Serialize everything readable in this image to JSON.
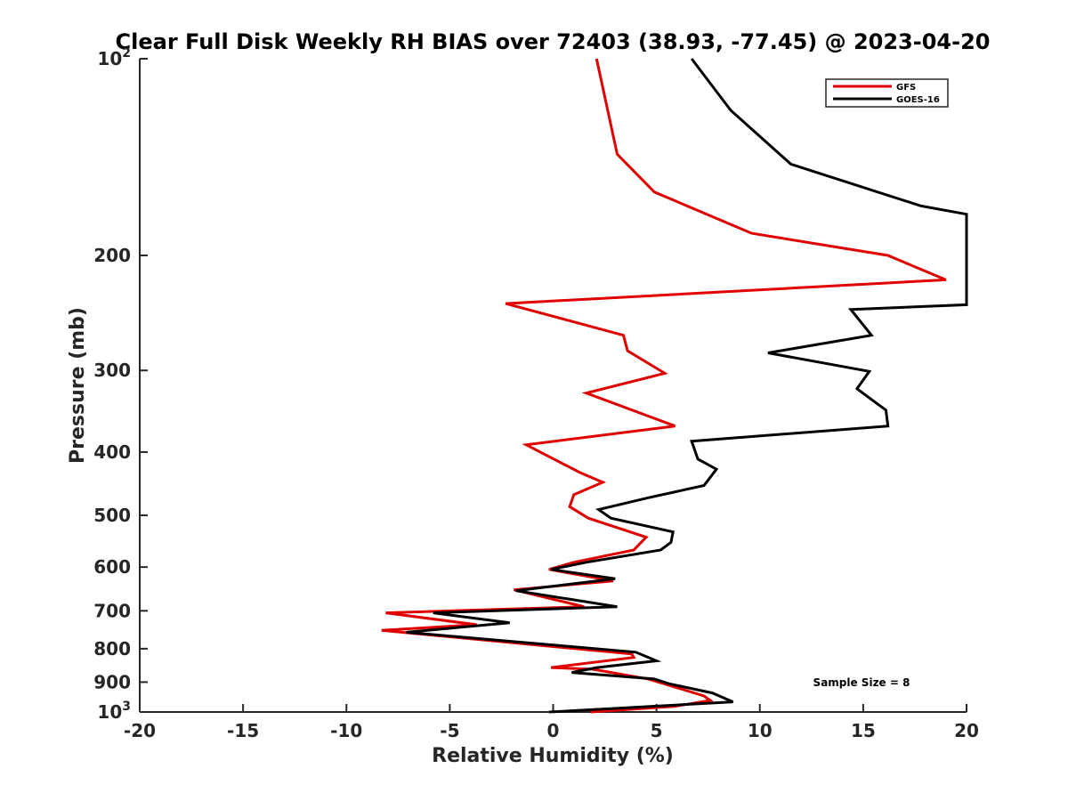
{
  "chart_data": {
    "type": "line",
    "title": "Clear Full Disk Weekly RH BIAS over 72403 (38.93, -77.45) @ 2023-04-20",
    "xlabel": "Relative Humidity (%)",
    "ylabel": "Pressure (mb)",
    "xlim": [
      -20,
      20
    ],
    "ylim": [
      100,
      1000
    ],
    "y_scale": "log",
    "y_reversed": true,
    "x_ticks": [
      -20,
      -15,
      -10,
      -5,
      0,
      5,
      10,
      15,
      20
    ],
    "x_tick_labels": [
      "-20",
      "-15",
      "-10",
      "-5",
      "0",
      "5",
      "10",
      "15",
      "20"
    ],
    "y_ticks": [
      100,
      200,
      300,
      400,
      500,
      600,
      700,
      800,
      900,
      1000
    ],
    "y_tick_labels": [
      {
        "base": "10",
        "exp": "2"
      },
      {
        "base": "200",
        "exp": ""
      },
      {
        "base": "300",
        "exp": ""
      },
      {
        "base": "400",
        "exp": ""
      },
      {
        "base": "500",
        "exp": ""
      },
      {
        "base": "600",
        "exp": ""
      },
      {
        "base": "700",
        "exp": ""
      },
      {
        "base": "800",
        "exp": ""
      },
      {
        "base": "900",
        "exp": ""
      },
      {
        "base": "10",
        "exp": "3"
      }
    ],
    "grid": false,
    "legend_position": "top-right",
    "annotation": "Sample Size = 8",
    "series": [
      {
        "name": "GFS",
        "color": "#e00000",
        "points": [
          [
            2.1,
            100
          ],
          [
            3.1,
            140
          ],
          [
            4.9,
            160
          ],
          [
            9.6,
            185
          ],
          [
            16.2,
            200
          ],
          [
            19.0,
            218
          ],
          [
            -2.3,
            237
          ],
          [
            3.4,
            265
          ],
          [
            3.6,
            280
          ],
          [
            5.4,
            303
          ],
          [
            1.6,
            325
          ],
          [
            5.9,
            365
          ],
          [
            -1.3,
            390
          ],
          [
            1.3,
            430
          ],
          [
            2.4,
            445
          ],
          [
            1.0,
            465
          ],
          [
            0.8,
            485
          ],
          [
            1.7,
            505
          ],
          [
            4.5,
            540
          ],
          [
            3.9,
            565
          ],
          [
            1.0,
            590
          ],
          [
            -0.2,
            605
          ],
          [
            2.9,
            630
          ],
          [
            -1.9,
            650
          ],
          [
            1.5,
            690
          ],
          [
            -8.1,
            705
          ],
          [
            -3.7,
            735
          ],
          [
            -8.3,
            750
          ],
          [
            3.8,
            815
          ],
          [
            3.9,
            825
          ],
          [
            -0.1,
            855
          ],
          [
            1.9,
            860
          ],
          [
            4.6,
            890
          ],
          [
            5.6,
            910
          ],
          [
            7.3,
            945
          ],
          [
            7.6,
            960
          ],
          [
            5.9,
            980
          ],
          [
            1.8,
            1000
          ]
        ]
      },
      {
        "name": "GOES-16",
        "color": "#000000",
        "points": [
          [
            6.7,
            100
          ],
          [
            8.6,
            120
          ],
          [
            11.5,
            145
          ],
          [
            17.8,
            168
          ],
          [
            20.0,
            173
          ],
          [
            20.0,
            238
          ],
          [
            14.4,
            242
          ],
          [
            15.4,
            265
          ],
          [
            10.4,
            282
          ],
          [
            15.3,
            301
          ],
          [
            14.7,
            320
          ],
          [
            16.1,
            345
          ],
          [
            16.2,
            365
          ],
          [
            6.7,
            385
          ],
          [
            7.0,
            410
          ],
          [
            7.9,
            425
          ],
          [
            7.3,
            450
          ],
          [
            4.6,
            470
          ],
          [
            2.2,
            490
          ],
          [
            2.8,
            505
          ],
          [
            5.8,
            530
          ],
          [
            5.7,
            550
          ],
          [
            5.2,
            565
          ],
          [
            1.6,
            590
          ],
          [
            -0.1,
            605
          ],
          [
            3.0,
            625
          ],
          [
            -1.8,
            652
          ],
          [
            3.1,
            690
          ],
          [
            -5.8,
            705
          ],
          [
            -2.1,
            730
          ],
          [
            -7.1,
            755
          ],
          [
            4.0,
            810
          ],
          [
            5.0,
            835
          ],
          [
            2.1,
            855
          ],
          [
            0.9,
            870
          ],
          [
            4.9,
            890
          ],
          [
            5.6,
            905
          ],
          [
            7.7,
            935
          ],
          [
            8.7,
            965
          ],
          [
            -0.2,
            1000
          ]
        ]
      }
    ]
  }
}
